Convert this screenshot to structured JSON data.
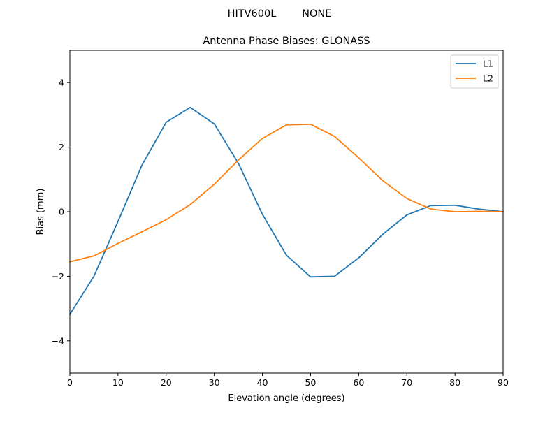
{
  "figure": {
    "suptitle": "HITV600L        NONE"
  },
  "chart_data": {
    "type": "line",
    "title": "Antenna Phase Biases: GLONASS",
    "xlabel": "Elevation angle (degrees)",
    "ylabel": "Bias (mm)",
    "xlim": [
      0,
      90
    ],
    "ylim": [
      -5,
      5
    ],
    "xticks": [
      0,
      10,
      20,
      30,
      40,
      50,
      60,
      70,
      80,
      90
    ],
    "yticks": [
      -4,
      -2,
      0,
      2,
      4
    ],
    "grid": false,
    "legend_position": "top-right",
    "x": [
      0,
      5,
      10,
      15,
      20,
      25,
      30,
      35,
      40,
      45,
      50,
      55,
      60,
      65,
      70,
      75,
      80,
      85,
      90
    ],
    "series": [
      {
        "name": "L1",
        "color": "#1f77b4",
        "values": [
          -3.18,
          -2.0,
          -0.3,
          1.45,
          2.77,
          3.23,
          2.72,
          1.5,
          -0.08,
          -1.35,
          -2.02,
          -2.0,
          -1.43,
          -0.7,
          -0.1,
          0.19,
          0.2,
          0.08,
          0.0
        ]
      },
      {
        "name": "L2",
        "color": "#ff7f0e",
        "values": [
          -1.55,
          -1.37,
          -0.98,
          -0.62,
          -0.25,
          0.22,
          0.85,
          1.6,
          2.27,
          2.69,
          2.71,
          2.33,
          1.67,
          0.96,
          0.41,
          0.08,
          0.0,
          0.01,
          0.0
        ]
      }
    ]
  }
}
